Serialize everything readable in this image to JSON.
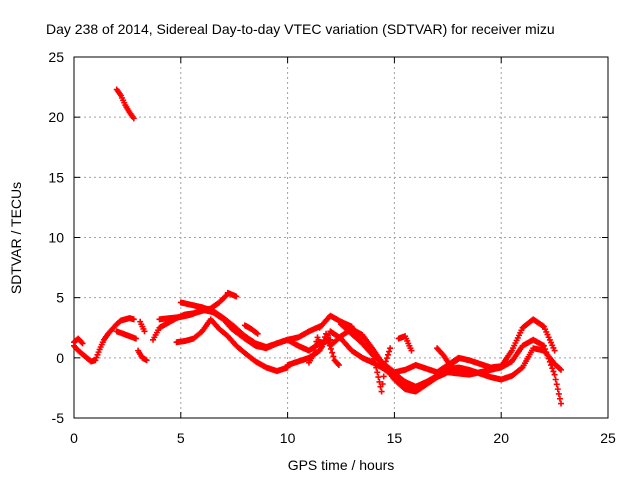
{
  "chart_data": {
    "type": "scatter",
    "title": "Day 238 of 2014, Sidereal Day-to-day VTEC variation (SDTVAR) for receiver mizu",
    "xlabel": "GPS time / hours",
    "ylabel": "SDTVAR / TECUs",
    "xlim": [
      0,
      25
    ],
    "ylim": [
      -5,
      25
    ],
    "xticks": [
      "0",
      "5",
      "10",
      "15",
      "20",
      "25"
    ],
    "yticks": [
      "-5",
      "0",
      "5",
      "10",
      "15",
      "20",
      "25"
    ],
    "grid": true,
    "marker": "plus",
    "color": "#ff0000",
    "series": [
      {
        "name": "segment-1",
        "x": [
          2.0,
          2.2,
          2.4,
          2.6,
          2.8
        ],
        "y": [
          22.3,
          21.8,
          21.0,
          20.4,
          19.9
        ]
      },
      {
        "name": "segment-2",
        "x": [
          0.0,
          0.2,
          0.4,
          0.6,
          0.8,
          1.0,
          1.2,
          1.4,
          1.6,
          1.8,
          2.0,
          2.2,
          2.4,
          2.6,
          2.8
        ],
        "y": [
          1.0,
          0.6,
          0.3,
          0.0,
          -0.3,
          -0.2,
          0.7,
          1.5,
          2.0,
          2.4,
          2.8,
          3.1,
          3.2,
          3.3,
          3.2
        ]
      },
      {
        "name": "segment-3",
        "x": [
          0.0,
          0.2,
          0.4
        ],
        "y": [
          1.3,
          1.6,
          1.2
        ]
      },
      {
        "name": "segment-4",
        "x": [
          2.0,
          2.3,
          2.6,
          2.9
        ],
        "y": [
          2.2,
          2.0,
          1.8,
          1.6
        ]
      },
      {
        "name": "segment-5",
        "x": [
          3.1,
          3.2,
          3.3
        ],
        "y": [
          3.0,
          2.6,
          2.2
        ]
      },
      {
        "name": "segment-6",
        "x": [
          3.0,
          3.2,
          3.4
        ],
        "y": [
          0.6,
          0.0,
          -0.2
        ]
      },
      {
        "name": "segment-7",
        "x": [
          3.7,
          4.0,
          4.4,
          4.8,
          5.2,
          5.6,
          6.0,
          6.4,
          6.8,
          7.2
        ],
        "y": [
          1.5,
          2.5,
          2.9,
          3.3,
          3.6,
          3.7,
          3.9,
          4.1,
          4.6,
          5.3
        ]
      },
      {
        "name": "segment-8",
        "x": [
          4.0,
          4.5,
          5.0,
          5.5,
          6.0,
          6.5,
          7.0,
          7.4,
          8.0,
          8.5,
          9.0,
          9.5,
          10.0,
          10.5,
          11.0,
          11.5,
          12.0
        ],
        "y": [
          3.2,
          3.3,
          3.4,
          3.6,
          4.0,
          3.8,
          3.2,
          2.4,
          1.6,
          1.0,
          0.8,
          1.2,
          1.5,
          1.0,
          0.6,
          1.2,
          1.5
        ]
      },
      {
        "name": "segment-9",
        "x": [
          5.0,
          5.5,
          6.0,
          6.5,
          7.0,
          7.5,
          8.0,
          8.5,
          9.0,
          9.5,
          10.0,
          10.5,
          11.0,
          11.5
        ],
        "y": [
          4.6,
          4.4,
          4.2,
          3.9,
          3.3,
          2.6,
          1.8,
          1.2,
          0.9,
          1.2,
          1.5,
          1.7,
          2.2,
          2.6
        ]
      },
      {
        "name": "segment-10",
        "x": [
          4.8,
          5.2,
          5.6,
          6.0,
          6.4,
          6.8,
          7.2,
          7.6,
          8.0,
          8.5,
          9.0,
          9.5,
          10.0
        ],
        "y": [
          1.3,
          1.4,
          1.6,
          2.2,
          3.2,
          2.4,
          1.8,
          1.0,
          0.4,
          -0.3,
          -0.8,
          -1.1,
          -0.8
        ]
      },
      {
        "name": "segment-11",
        "x": [
          10.0,
          10.5,
          11.0,
          11.5,
          12.0,
          12.5,
          13.0,
          13.5,
          14.0,
          14.5,
          15.0,
          15.5,
          16.0
        ],
        "y": [
          -0.6,
          -0.3,
          0.0,
          0.6,
          2.2,
          1.6,
          0.6,
          0.0,
          -0.4,
          -0.9,
          -1.6,
          -2.2,
          -2.6
        ]
      },
      {
        "name": "segment-12",
        "x": [
          11.5,
          12.0,
          12.5,
          13.0,
          13.5,
          14.0,
          14.5,
          15.0,
          15.5,
          16.0,
          16.5,
          17.0,
          17.5,
          18.0,
          18.5,
          19.0,
          19.5,
          20.0,
          20.5,
          21.0,
          21.5,
          22.0,
          22.5,
          22.8
        ],
        "y": [
          2.5,
          3.5,
          3.0,
          2.6,
          1.2,
          0.2,
          -0.5,
          -1.3,
          -2.0,
          -2.4,
          -2.0,
          -1.5,
          -1.0,
          -0.8,
          -1.0,
          -1.3,
          -1.6,
          -1.8,
          -1.5,
          -0.8,
          0.8,
          0.6,
          -0.5,
          -1.0
        ]
      },
      {
        "name": "segment-13",
        "x": [
          12.0,
          12.5,
          13.0,
          13.5,
          14.0,
          14.5,
          15.0,
          15.5,
          16.0,
          16.5,
          17.0,
          17.5,
          18.0,
          18.5,
          19.0,
          19.5,
          20.0,
          20.5,
          21.0,
          21.5,
          22.0,
          22.5,
          22.8
        ],
        "y": [
          1.0,
          1.8,
          2.4,
          1.9,
          0.7,
          -0.6,
          -1.8,
          -2.6,
          -2.8,
          -2.2,
          -1.6,
          -1.2,
          -1.3,
          -1.4,
          -1.2,
          -1.0,
          -0.8,
          -0.3,
          1.0,
          1.5,
          1.0,
          -1.4,
          -3.8
        ]
      },
      {
        "name": "segment-14",
        "x": [
          12.5,
          13.0,
          13.5,
          14.0,
          14.5,
          15.0,
          15.5,
          16.0,
          16.5,
          17.0,
          17.5,
          18.0,
          18.5,
          19.0,
          19.5,
          20.0,
          20.5,
          21.0,
          21.5,
          22.0,
          22.5
        ],
        "y": [
          2.8,
          2.0,
          1.2,
          0.4,
          -0.5,
          -1.2,
          -1.0,
          -0.6,
          -0.9,
          -1.2,
          -0.6,
          0.0,
          -0.2,
          -0.5,
          -0.8,
          -0.7,
          0.6,
          2.5,
          3.2,
          2.6,
          0.6
        ]
      },
      {
        "name": "segment-15",
        "x": [
          11.0,
          11.2,
          11.4,
          11.6,
          11.8,
          12.2,
          12.4
        ],
        "y": [
          -0.4,
          0.3,
          1.7,
          0.9,
          2.0,
          -0.2,
          -0.6
        ]
      },
      {
        "name": "segment-16",
        "x": [
          14.0,
          14.2,
          14.4,
          14.6,
          14.8
        ],
        "y": [
          0.3,
          -1.2,
          -2.8,
          -0.3,
          0.8
        ]
      },
      {
        "name": "segment-17",
        "x": [
          15.2,
          15.5,
          15.8
        ],
        "y": [
          1.6,
          1.8,
          0.6
        ]
      },
      {
        "name": "segment-18",
        "x": [
          17.0,
          17.3,
          17.6,
          18.0
        ],
        "y": [
          0.8,
          0.2,
          -0.6,
          -0.1
        ]
      },
      {
        "name": "segment-19",
        "x": [
          7.2,
          7.6
        ],
        "y": [
          5.4,
          5.1
        ]
      },
      {
        "name": "segment-20",
        "x": [
          8.0,
          8.3,
          8.6
        ],
        "y": [
          2.7,
          2.4,
          2.0
        ]
      }
    ]
  }
}
